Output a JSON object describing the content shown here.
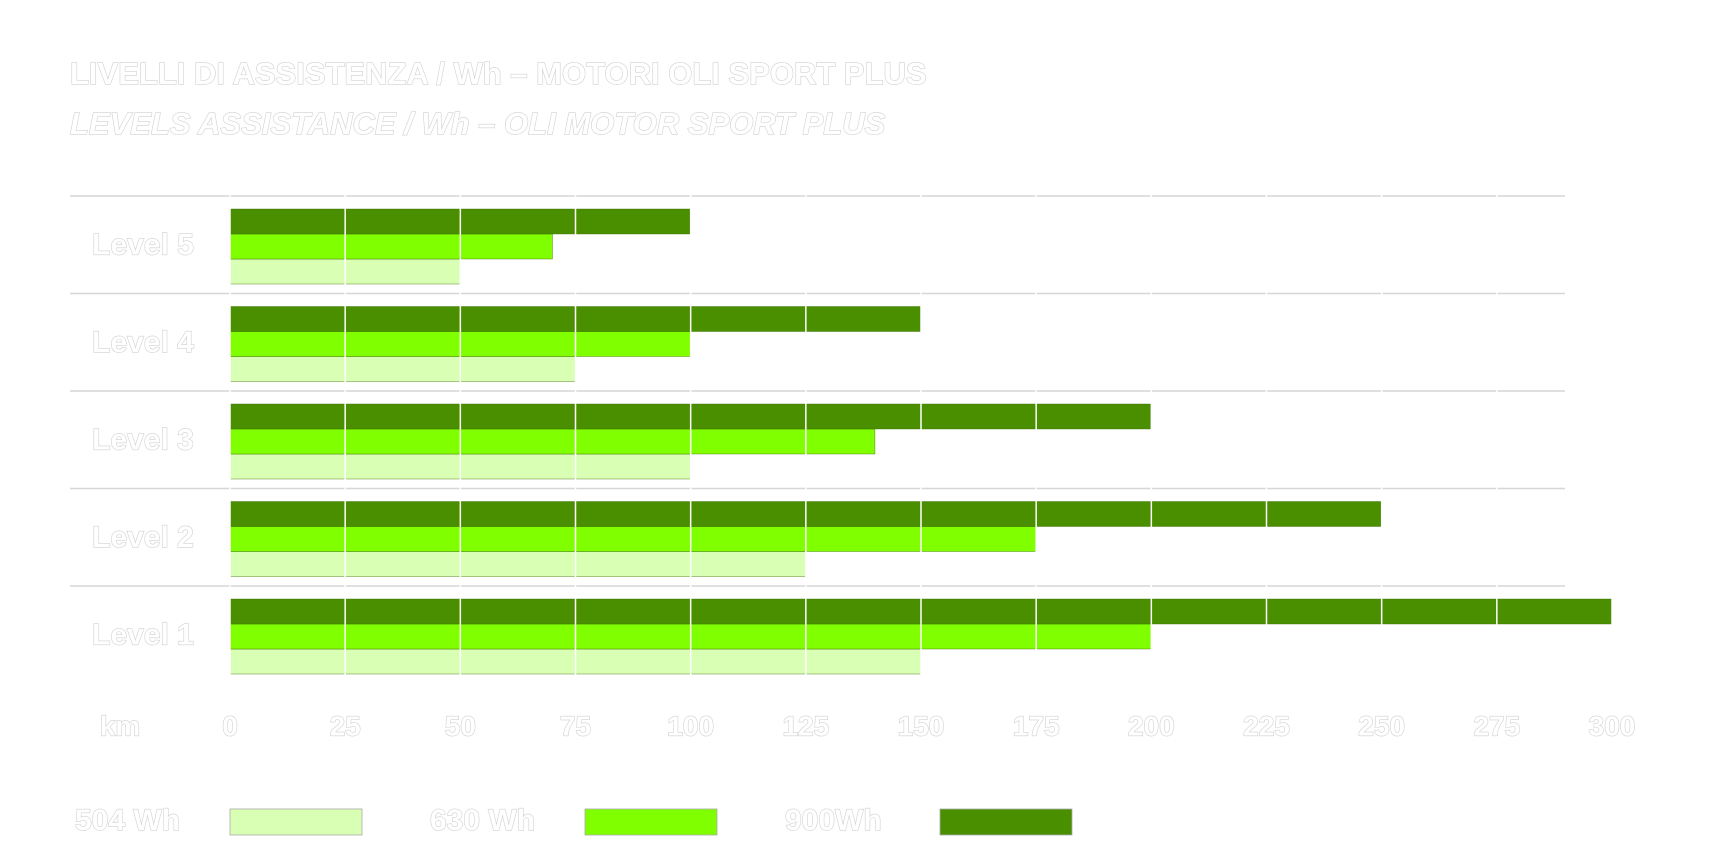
{
  "chart_data": {
    "type": "bar",
    "orientation": "horizontal",
    "title": "LIVELLI DI ASSISTENZA / Wh – MOTORI OLI SPORT PLUS",
    "subtitle": "LEVELS ASSISTANCE / Wh – OLI MOTOR SPORT PLUS",
    "x_label": "km",
    "categories": [
      "Level 5",
      "Level 4",
      "Level 3",
      "Level 2",
      "Level 1"
    ],
    "series": [
      {
        "name": "504 Wh",
        "color": "#d9ffb5",
        "values": [
          50,
          75,
          100,
          125,
          150
        ]
      },
      {
        "name": "630 Wh",
        "color": "#80ff00",
        "values": [
          70,
          100,
          140,
          175,
          200
        ]
      },
      {
        "name": "900Wh",
        "color": "#4a8f00",
        "values": [
          100,
          150,
          200,
          250,
          300
        ]
      }
    ],
    "xlim": [
      0,
      300
    ],
    "xticks": [
      0,
      25,
      50,
      75,
      100,
      125,
      150,
      175,
      200,
      225,
      250,
      275,
      300
    ],
    "grid": true
  }
}
